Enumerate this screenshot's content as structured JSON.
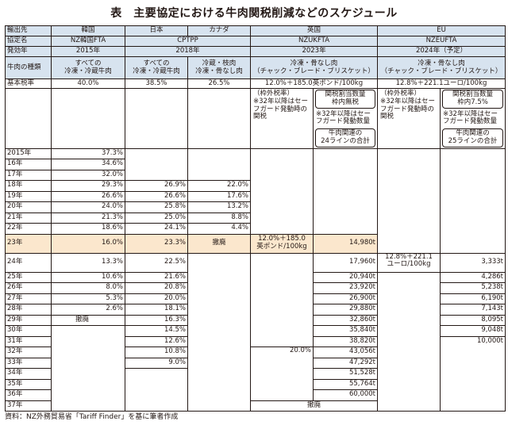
{
  "title": "表　主要協定における牛肉関税削減などのスケジュール",
  "source": "資料：NZ外務貿易省「Tariff Finder」を基に筆者作成",
  "row_labels": {
    "export_dest": "輸出先",
    "agreement": "協定名",
    "effective": "発効年",
    "beef_type": "牛肉の種類",
    "base_rate": "基本税率"
  },
  "countries": {
    "korea": "韓国",
    "japan": "日本",
    "canada": "カナダ",
    "uk": "英国",
    "eu": "EU"
  },
  "agreements": {
    "korea": "NZ韓国FTA",
    "cptpp": "CPTPP",
    "uk": "NZUKFTA",
    "eu": "NZEUFTA"
  },
  "effective": {
    "korea": "2015年",
    "cptpp": "2018年",
    "uk": "2023年",
    "eu": "2024年（予定）"
  },
  "beef_types": {
    "korea": "すべての\n冷凍・冷蔵牛肉",
    "japan": "すべての\n冷凍・冷蔵牛肉",
    "canada": "冷蔵・枝肉\n冷凍・骨なし肉",
    "uk": "冷凍・骨なし肉\n（チャック・ブレード・ブリスケット）",
    "eu": "冷凍・骨なし肉\n（チャック・ブレード・ブリスケット）"
  },
  "base_rates": {
    "korea": "40.0%",
    "japan": "38.5%",
    "canada": "26.5%",
    "uk": "12.0%＋185.0英ポンド/100kg",
    "eu": "12.8%＋221.1ユーロ/100kg"
  },
  "descriptions": {
    "uk_outside": "（枠外税率）\n※32年以降はセーフガード発動時の関税",
    "uk_quota_title": "関税割当数量\n枠内無税",
    "uk_quota_note": "※32年以降はセーフガード発動数量",
    "uk_quota_lines": "牛肉関連の\n24ラインの合計",
    "eu_outside": "（枠外税率）\n※32年以降はセーフガード発動時の関税",
    "eu_quota_title": "関税割当数量\n枠内7.5%",
    "eu_quota_note": "※32年以降はセーフガード発動数量",
    "eu_quota_lines": "牛肉関連の\n25ラインの合計"
  },
  "years": {
    "y2015": "2015年",
    "y16": "16年",
    "y17": "17年",
    "y18": "18年",
    "y19": "19年",
    "y20": "20年",
    "y21": "21年",
    "y22": "22年",
    "y23": "23年",
    "y24": "24年",
    "y25": "25年",
    "y26": "26年",
    "y27": "27年",
    "y28": "28年",
    "y29": "29年",
    "y30": "30年",
    "y31": "31年",
    "y32": "32年",
    "y33": "33年",
    "y34": "34年",
    "y35": "35年",
    "y36": "36年",
    "y37": "37年"
  },
  "korea": {
    "y2015": "37.3%",
    "y16": "34.6%",
    "y17": "32.0%",
    "y18": "29.3%",
    "y19": "26.6%",
    "y20": "24.0%",
    "y21": "21.3%",
    "y22": "18.6%",
    "y23": "16.0%",
    "y24": "13.3%",
    "y25": "10.6%",
    "y26": "8.0%",
    "y27": "5.3%",
    "y28": "2.6%",
    "y29": "撤廃"
  },
  "japan": {
    "y18": "26.9%",
    "y19": "26.6%",
    "y20": "25.8%",
    "y21": "25.0%",
    "y22": "24.1%",
    "y23": "23.3%",
    "y24": "22.5%",
    "y25": "21.6%",
    "y26": "20.8%",
    "y27": "20.0%",
    "y28": "18.1%",
    "y29": "16.3%",
    "y30": "14.5%",
    "y31": "12.6%",
    "y32": "10.8%",
    "y33": "9.0%"
  },
  "canada": {
    "y18": "22.0%",
    "y19": "17.6%",
    "y20": "13.2%",
    "y21": "8.8%",
    "y22": "4.4%",
    "y23": "撤廃"
  },
  "uk_rate": {
    "y23": "12.0%＋185.0\n英ポンド/100kg",
    "y32": "20.0%"
  },
  "uk_quota": {
    "y23": "14,980t",
    "y24": "17,960t",
    "y25": "20,940t",
    "y26": "23,920t",
    "y27": "26,900t",
    "y28": "29,880t",
    "y29": "32,860t",
    "y30": "35,840t",
    "y31": "38,820t",
    "y32": "43,056t",
    "y33": "47,292t",
    "y34": "51,528t",
    "y35": "55,764t",
    "y36": "60,000t",
    "y37": "撤廃"
  },
  "eu_rate": {
    "y24": "12.8%＋221.1\nユーロ/100kg"
  },
  "eu_quota": {
    "y24": "3,333t",
    "y25": "4,286t",
    "y26": "5,238t",
    "y27": "6,190t",
    "y28": "7,143t",
    "y29": "8,095t",
    "y30": "9,048t",
    "y31": "10,000t"
  }
}
